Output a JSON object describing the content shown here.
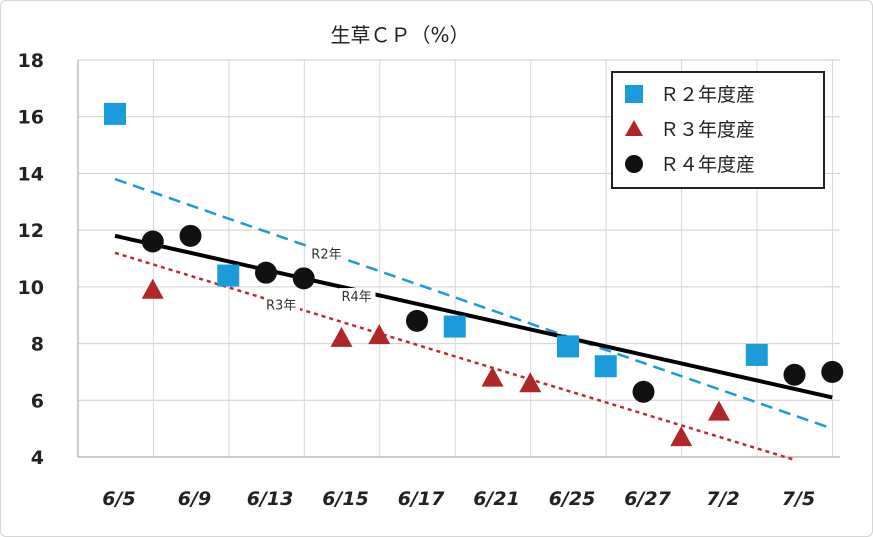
{
  "chart_data": {
    "type": "scatter",
    "title": "生草ＣＰ（%）",
    "ylim": [
      4,
      18
    ],
    "yticks": [
      4,
      6,
      8,
      10,
      12,
      14,
      16,
      18
    ],
    "grid": true,
    "legend_position": "top-right",
    "categories": [
      "6/5",
      "6/9",
      "6/13",
      "6/15",
      "6/17",
      "6/21",
      "6/25",
      "6/27",
      "7/2",
      "7/5"
    ],
    "series": [
      {
        "name": "Ｒ２年度産",
        "marker": "square",
        "color": "#1a9bdc",
        "points": [
          {
            "x": 0.0,
            "y": 16.1
          },
          {
            "x": 1.5,
            "y": 10.4
          },
          {
            "x": 4.5,
            "y": 8.6
          },
          {
            "x": 6.0,
            "y": 7.9
          },
          {
            "x": 6.5,
            "y": 7.2
          },
          {
            "x": 8.5,
            "y": 7.6
          }
        ]
      },
      {
        "name": "Ｒ３年度産",
        "marker": "triangle",
        "color": "#b0272a",
        "points": [
          {
            "x": 0.5,
            "y": 9.9
          },
          {
            "x": 3.0,
            "y": 8.2
          },
          {
            "x": 3.5,
            "y": 8.3
          },
          {
            "x": 5.0,
            "y": 6.8
          },
          {
            "x": 5.5,
            "y": 6.6
          },
          {
            "x": 7.5,
            "y": 4.7
          },
          {
            "x": 8.0,
            "y": 5.6
          }
        ]
      },
      {
        "name": "Ｒ４年度産",
        "marker": "circle",
        "color": "#111111",
        "points": [
          {
            "x": 0.5,
            "y": 11.6
          },
          {
            "x": 1.0,
            "y": 11.8
          },
          {
            "x": 2.0,
            "y": 10.5
          },
          {
            "x": 2.5,
            "y": 10.3
          },
          {
            "x": 4.0,
            "y": 8.8
          },
          {
            "x": 7.0,
            "y": 6.3
          },
          {
            "x": 9.0,
            "y": 6.9
          },
          {
            "x": 9.5,
            "y": 7.0
          }
        ]
      }
    ],
    "trendlines": [
      {
        "label": "R2年",
        "color": "#1a9bdc",
        "style": "dashed",
        "x": [
          0.0,
          9.5
        ],
        "y": [
          13.8,
          5.0
        ],
        "label_at": {
          "x": 2.6,
          "y": 11.0
        }
      },
      {
        "label": "R3年",
        "color": "#c0282c",
        "style": "dotted",
        "x": [
          0.0,
          9.0
        ],
        "y": [
          11.2,
          3.9
        ],
        "label_at": {
          "x": 2.0,
          "y": 9.2
        }
      },
      {
        "label": "R4年",
        "color": "#000000",
        "style": "solid",
        "x": [
          0.0,
          9.5
        ],
        "y": [
          11.8,
          6.1
        ],
        "label_at": {
          "x": 3.0,
          "y": 9.5
        }
      }
    ]
  }
}
